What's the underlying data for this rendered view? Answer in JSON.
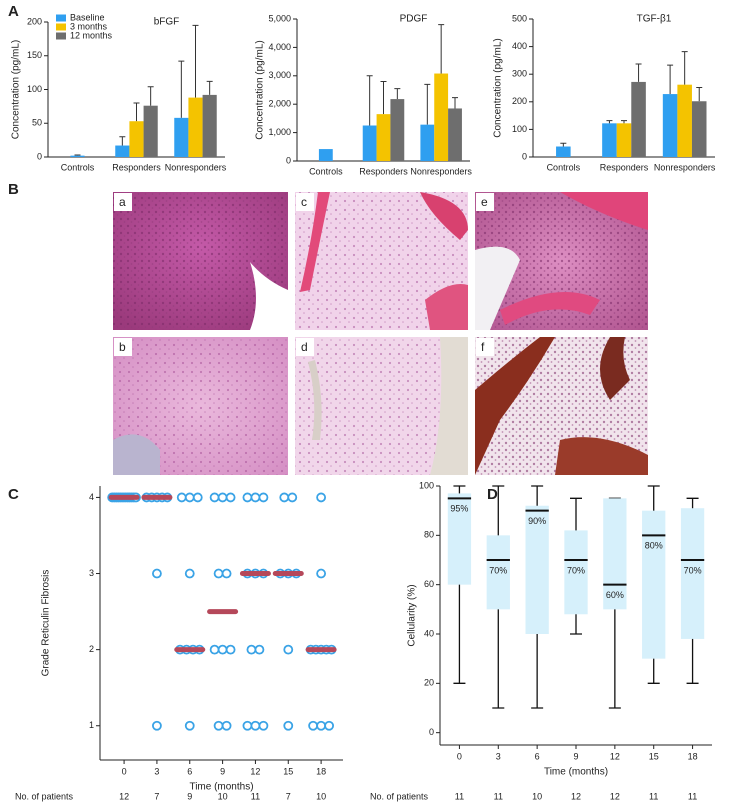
{
  "figure": {
    "panel_labels": [
      "A",
      "B",
      "C",
      "D"
    ],
    "image_labels": [
      "a",
      "b",
      "c",
      "d",
      "e",
      "f"
    ]
  },
  "chart_data": [
    {
      "type": "bar",
      "title": "bFGF",
      "y_label": "Concentration (pg/mL)",
      "categories": [
        "Controls",
        "Responders",
        "Nonresponders"
      ],
      "series": [
        {
          "name": "Baseline",
          "color": "#2f9ff0",
          "values": [
            2,
            17,
            58
          ],
          "errors": [
            1,
            13,
            84
          ]
        },
        {
          "name": "3 months",
          "color": "#f4c300",
          "values": [
            null,
            53,
            88
          ],
          "errors": [
            null,
            27,
            107
          ]
        },
        {
          "name": "12 months",
          "color": "#6e6e6e",
          "values": [
            null,
            76,
            92
          ],
          "errors": [
            null,
            28,
            20
          ]
        }
      ],
      "ylim": [
        0,
        200
      ],
      "yticks": [
        0,
        50,
        100,
        150,
        200
      ]
    },
    {
      "type": "bar",
      "title": "PDGF",
      "y_label": "Concentration (pg/mL)",
      "categories": [
        "Controls",
        "Responders",
        "Nonresponders"
      ],
      "series": [
        {
          "color": "#2f9ff0",
          "values": [
            420,
            1250,
            1280
          ],
          "errors": [
            null,
            1750,
            1420
          ]
        },
        {
          "color": "#f4c300",
          "values": [
            null,
            1650,
            3080
          ],
          "errors": [
            null,
            1150,
            1720
          ]
        },
        {
          "color": "#6e6e6e",
          "values": [
            null,
            2180,
            1850
          ],
          "errors": [
            null,
            370,
            380
          ]
        }
      ],
      "ylim": [
        0,
        5000
      ],
      "yticks": [
        0,
        {
          "value": 1000,
          "label": "1,000"
        },
        {
          "value": 2000,
          "label": "2,000"
        },
        {
          "value": 3000,
          "label": "3,000"
        },
        {
          "value": 4000,
          "label": "4,000"
        },
        {
          "value": 5000,
          "label": "5,000"
        }
      ]
    },
    {
      "type": "bar",
      "title": "TGF-β1",
      "y_label": "Concentration (pg/mL)",
      "categories": [
        "Controls",
        "Responders",
        "Nonresponders"
      ],
      "series": [
        {
          "color": "#2f9ff0",
          "values": [
            38,
            122,
            228
          ],
          "errors": [
            12,
            10,
            105
          ]
        },
        {
          "color": "#f4c300",
          "values": [
            null,
            122,
            262
          ],
          "errors": [
            null,
            10,
            120
          ]
        },
        {
          "color": "#6e6e6e",
          "values": [
            null,
            272,
            202
          ],
          "errors": [
            null,
            65,
            50
          ]
        }
      ],
      "ylim": [
        0,
        500
      ],
      "yticks": [
        0,
        100,
        200,
        300,
        400,
        500
      ]
    },
    {
      "type": "scatter",
      "x_label": "Time (months)",
      "y_label": "Grade Reticulin Fibrosis",
      "x": [
        0,
        0,
        0,
        0,
        0,
        0,
        0,
        0,
        0,
        0,
        0,
        0,
        3,
        3,
        3,
        3,
        3,
        3,
        3,
        6,
        6,
        6,
        6,
        6,
        6,
        6,
        6,
        6,
        9,
        9,
        9,
        9,
        9,
        9,
        9,
        9,
        9,
        9,
        12,
        12,
        12,
        12,
        12,
        12,
        12,
        12,
        12,
        12,
        12,
        15,
        15,
        15,
        15,
        15,
        15,
        15,
        18,
        18,
        18,
        18,
        18,
        18,
        18,
        18,
        18,
        18
      ],
      "values": [
        4,
        4,
        4,
        4,
        4,
        4,
        4,
        4,
        4,
        4,
        4,
        4,
        4,
        4,
        4,
        4,
        4,
        3,
        1,
        4,
        4,
        4,
        3,
        2,
        2,
        2,
        2,
        1,
        4,
        4,
        4,
        3,
        3,
        2,
        2,
        2,
        1,
        1,
        4,
        4,
        4,
        3,
        3,
        3,
        2,
        2,
        1,
        1,
        1,
        4,
        4,
        3,
        3,
        3,
        2,
        1,
        4,
        3,
        2,
        2,
        2,
        2,
        2,
        1,
        1,
        1
      ],
      "color": "#3aa3e6",
      "medians": {
        "x": [
          0,
          3,
          6,
          9,
          12,
          15,
          18
        ],
        "values": [
          4,
          4,
          2,
          2.5,
          3,
          3,
          2
        ],
        "color": "#b5485a"
      },
      "xlim": [
        -2.2,
        20
      ],
      "xticks": [
        0,
        3,
        6,
        9,
        12,
        15,
        18
      ],
      "ylim": [
        0.55,
        4.15
      ],
      "yticks": [
        1,
        2,
        3,
        4
      ],
      "patients_label": "No. of patients",
      "patients": [
        12,
        7,
        9,
        10,
        11,
        7,
        10
      ]
    },
    {
      "type": "box",
      "x_label": "Time (months)",
      "y_label": "Cellularity (%)",
      "categories": [
        "0",
        "3",
        "6",
        "9",
        "12",
        "15",
        "18"
      ],
      "min": [
        20,
        10,
        10,
        40,
        10,
        20,
        20
      ],
      "q1": [
        60,
        50,
        40,
        48,
        50,
        30,
        38
      ],
      "median": [
        95,
        70,
        90,
        70,
        60,
        80,
        70
      ],
      "q3": [
        97,
        80,
        92,
        82,
        95,
        90,
        91
      ],
      "max": [
        100,
        100,
        100,
        95,
        95,
        100,
        95
      ],
      "median_labels": [
        "95%",
        "70%",
        "90%",
        "70%",
        "60%",
        "80%",
        "70%"
      ],
      "color": "#d6f0fb",
      "ylim": [
        -5,
        100
      ],
      "yticks": [
        0,
        20,
        40,
        60,
        80,
        100
      ],
      "patients_label": "No. of patients",
      "patients": [
        11,
        11,
        10,
        12,
        12,
        11,
        11
      ]
    }
  ]
}
